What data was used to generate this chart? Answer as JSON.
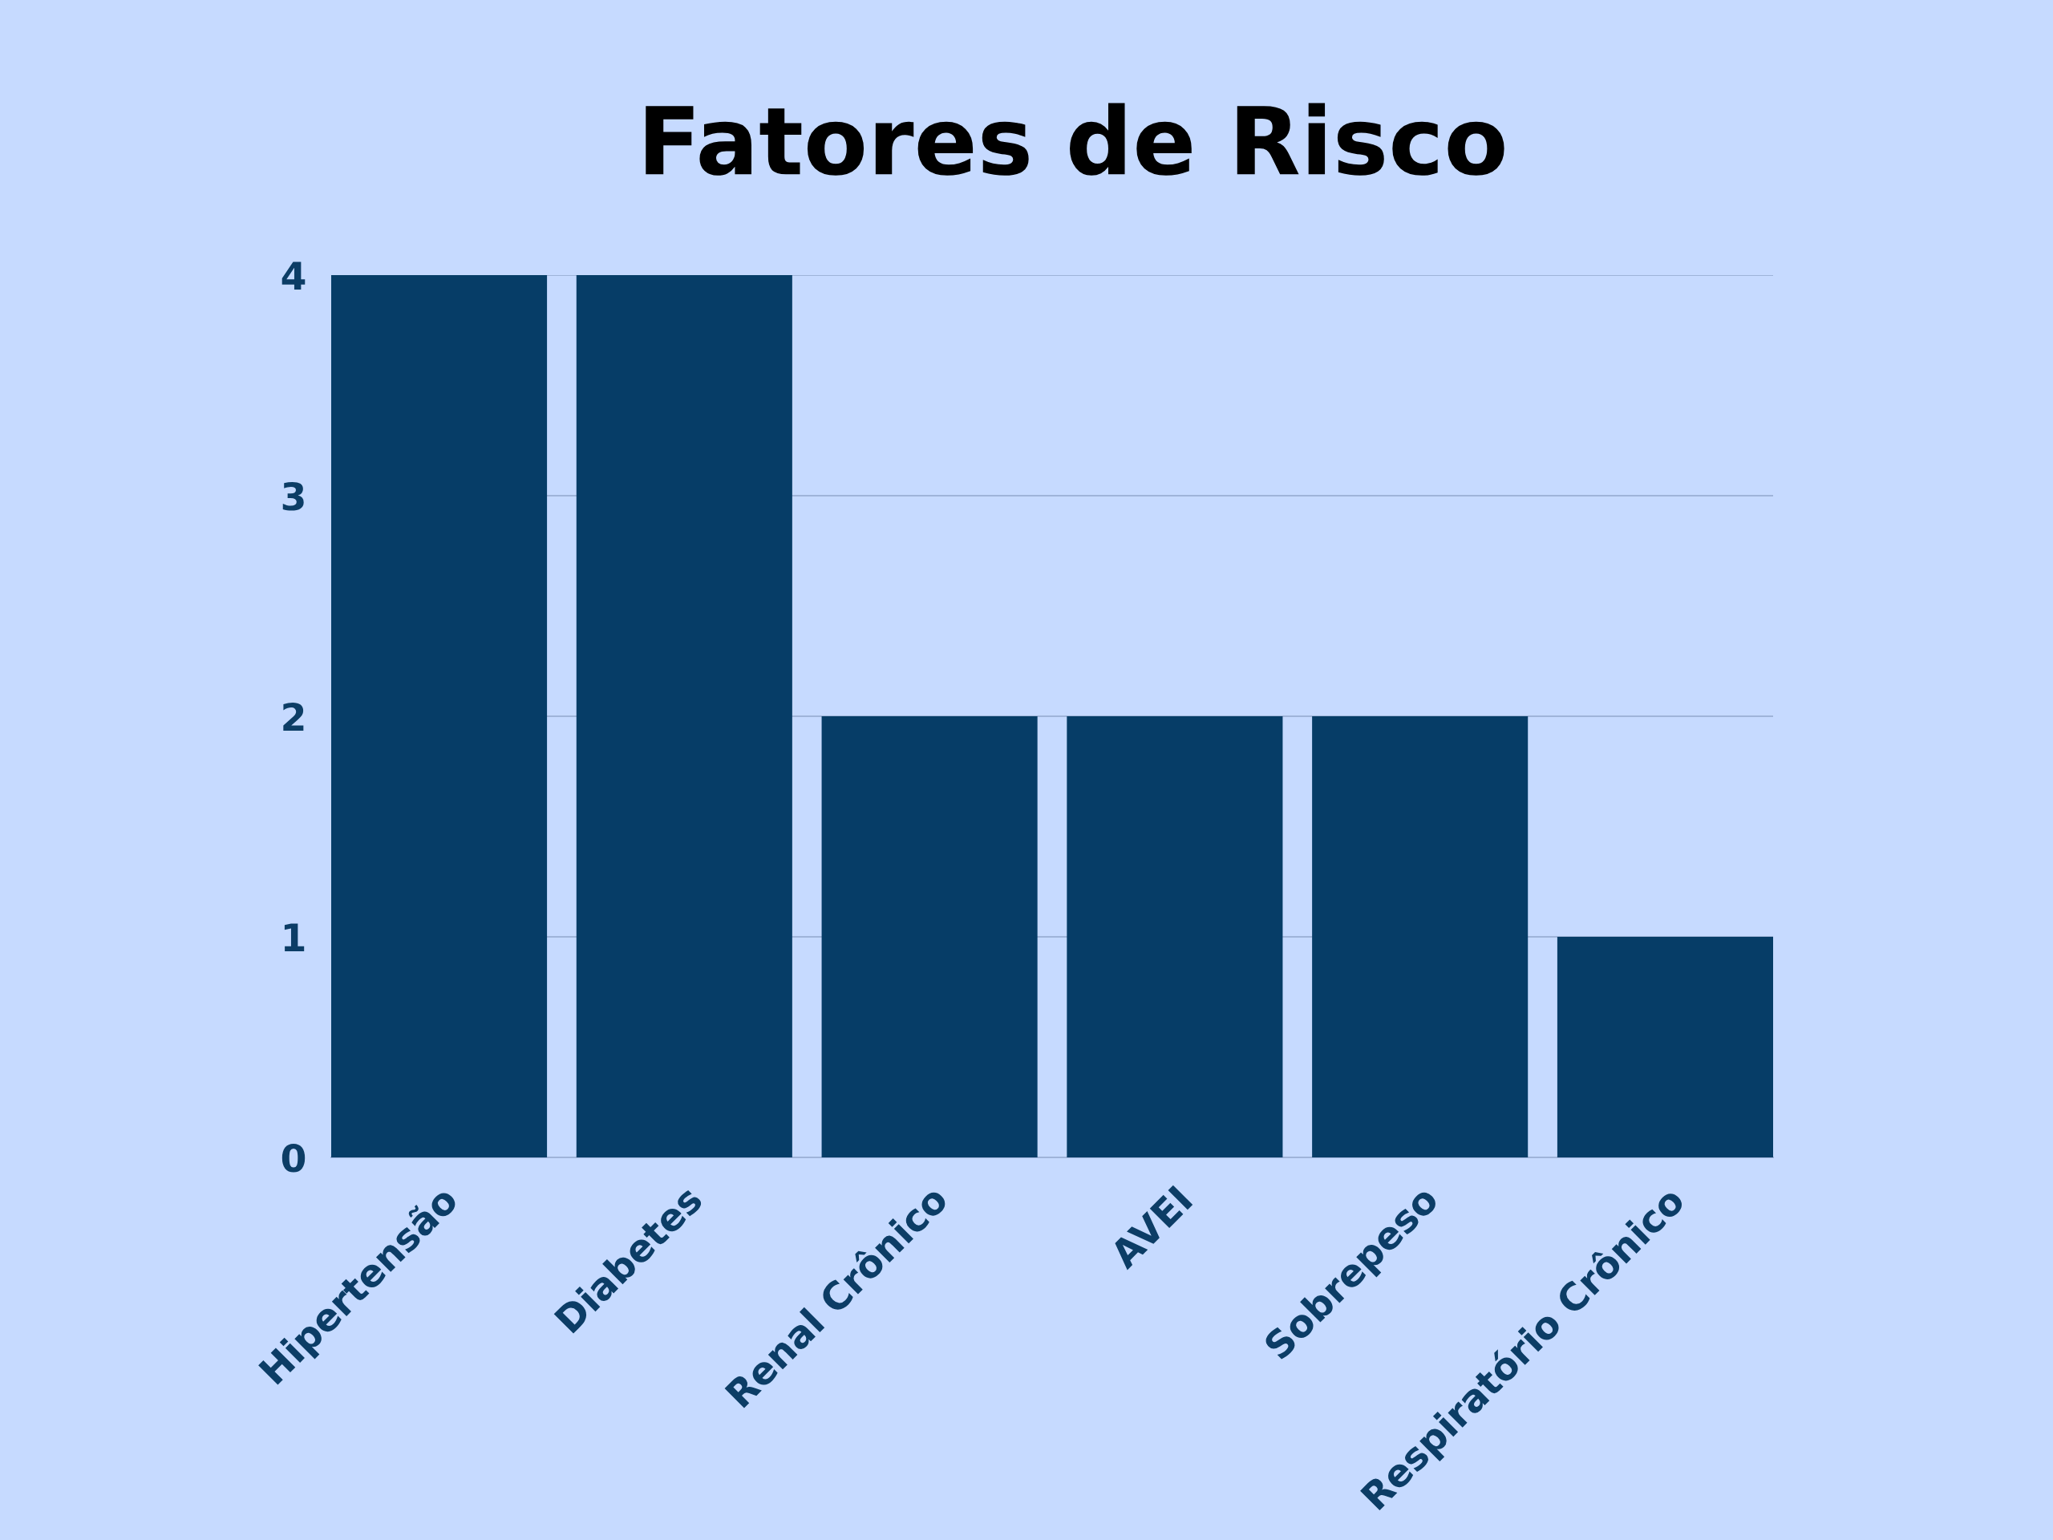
{
  "chart_data": {
    "type": "bar",
    "title": "Fatores de Risco",
    "categories": [
      "Hipertensão",
      "Diabetes",
      "Renal Crônico",
      "AVEI",
      "Sobrepeso",
      "Respiratório Crônico"
    ],
    "values": [
      4,
      4,
      2,
      2,
      2,
      1
    ],
    "color": "#063d67",
    "ylim": [
      0,
      4
    ],
    "yticks": [
      0,
      1,
      2,
      3,
      4
    ],
    "grid": "y",
    "legend": false
  }
}
